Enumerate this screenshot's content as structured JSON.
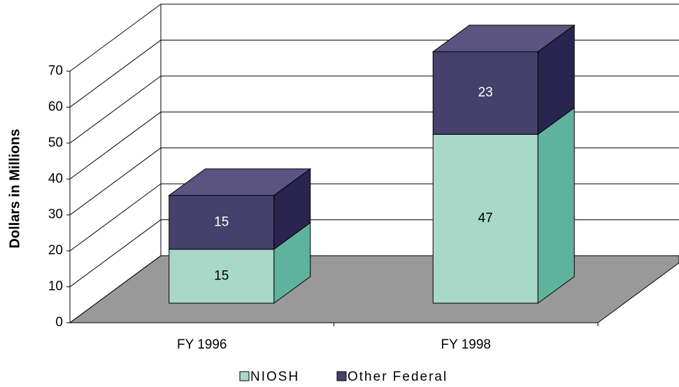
{
  "chart_data": {
    "type": "bar3d-stacked",
    "categories": [
      "FY 1996",
      "FY 1998"
    ],
    "series": [
      {
        "name": "NIOSH",
        "color": "#a8d8c8",
        "values": [
          15,
          47
        ]
      },
      {
        "name": "Other Federal",
        "color": "#46406c",
        "values": [
          15,
          23
        ]
      }
    ],
    "y_label": "Dollars in Millions",
    "ylim": [
      0,
      70
    ],
    "yticks": [
      0,
      10,
      20,
      30,
      40,
      50,
      60,
      70
    ],
    "grid": true,
    "legend": "bottom"
  }
}
